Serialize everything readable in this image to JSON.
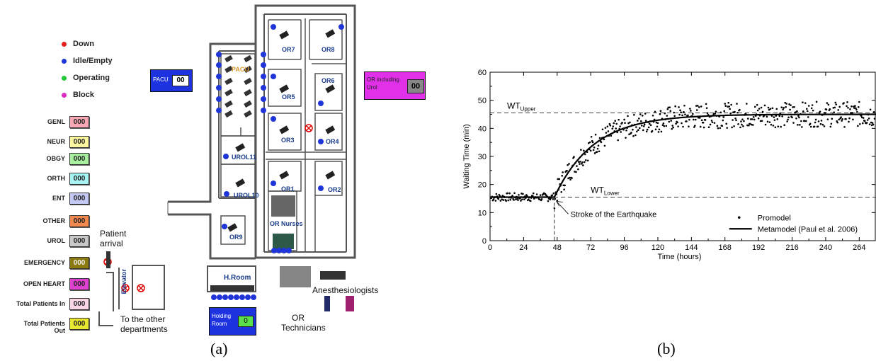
{
  "legend": [
    {
      "label": "Down",
      "color": "#e22020"
    },
    {
      "label": "Idle/Empty",
      "color": "#1f35d8"
    },
    {
      "label": "Operating",
      "color": "#22c83a"
    },
    {
      "label": "Block",
      "color": "#d82cc0"
    }
  ],
  "categories": [
    {
      "label": "GENL",
      "value": "000",
      "color": "#f7a8b4"
    },
    {
      "label": "NEUR",
      "value": "000",
      "color": "#fbf7a0"
    },
    {
      "label": "OBGY",
      "value": "000",
      "color": "#a8f0a0"
    },
    {
      "label": "ORTH",
      "value": "000",
      "color": "#a8f4f4"
    },
    {
      "label": "ENT",
      "value": "000",
      "color": "#c4c8f4"
    },
    {
      "label": "OTHER",
      "value": "000",
      "color": "#f08850"
    },
    {
      "label": "UROL",
      "value": "000",
      "color": "#c8c8c8"
    },
    {
      "label": "EMERGENCY",
      "value": "000",
      "color": "#8a7a10"
    },
    {
      "label": "OPEN HEART",
      "value": "000",
      "color": "#e040d0"
    },
    {
      "label": "Total Patients In",
      "value": "000",
      "color": "#f8d4e4"
    },
    {
      "label": "Total Patients Out",
      "value": "000",
      "color": "#e8e830"
    }
  ],
  "floor": {
    "pacu_box_label": "PACU",
    "pacu_box_value": "00",
    "pacu_room": "PACU",
    "or_including_label": "OR including Urol",
    "or_including_value": "00",
    "holding_label": "Holding Room",
    "holding_value": "0",
    "rooms": [
      "OR7",
      "OR8",
      "OR6",
      "OR5",
      "OR3",
      "OR4",
      "UROL11",
      "OR1",
      "OR2",
      "UROL10",
      "OR9"
    ],
    "or_nurses": "OR Nurses",
    "h_room": "H.Room",
    "elevator": "Elevator",
    "patient_arrival": "Patient arrival",
    "to_other_departments": "To the other departments",
    "or_technicians": "OR Technicians",
    "anesthesiologists": "Anesthesiologists"
  },
  "captions": {
    "a": "(a)",
    "b": "(b)"
  },
  "chart_data": {
    "type": "scatter",
    "xlabel": "Time (hours)",
    "ylabel": "Waiting Time (min)",
    "xlim": [
      0,
      276
    ],
    "ylim": [
      0,
      60
    ],
    "x_ticks": [
      "0",
      "24",
      "48",
      "72",
      "96",
      "120",
      "144",
      "168",
      "192",
      "216",
      "240",
      "264"
    ],
    "y_ticks": [
      "0",
      "10",
      "20",
      "30",
      "40",
      "50",
      "60"
    ],
    "wt_upper": {
      "prefix": "WT",
      "sub": "Upper",
      "value": 45.5
    },
    "wt_lower": {
      "prefix": "WT",
      "sub": "Lower",
      "value": 15.5
    },
    "earthquake_x": 46,
    "annotation": "Stroke of the Earthquake",
    "series": [
      {
        "name": "Promodel",
        "style": "dots"
      },
      {
        "name": "Metamodel (Paul et al. 2006)",
        "style": "line"
      }
    ],
    "metamodel": {
      "baseline": 15.5,
      "plateau": 45,
      "start": 46,
      "tau": 28
    }
  }
}
